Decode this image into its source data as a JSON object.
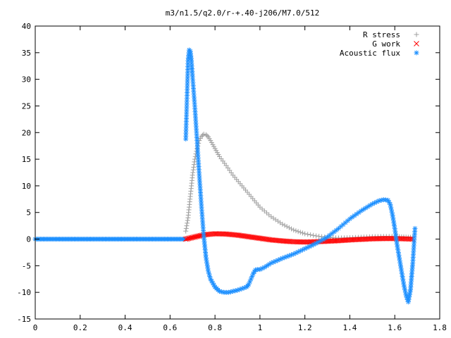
{
  "chart_data": {
    "type": "scatter",
    "title": "m3/n1.5/q2.0/r-+.40-j206/M7.0/512",
    "xlabel": "",
    "ylabel": "",
    "xlim": [
      0,
      1.8
    ],
    "ylim": [
      -15,
      40
    ],
    "x_ticks": [
      "0",
      "0.2",
      "0.4",
      "0.6",
      "0.8",
      "1",
      "1.2",
      "1.4",
      "1.6",
      "1.8"
    ],
    "y_ticks": [
      "-15",
      "-10",
      "-5",
      "0",
      "5",
      "10",
      "15",
      "20",
      "25",
      "30",
      "35",
      "40"
    ],
    "grid": false,
    "legend_position": "top-right",
    "series": [
      {
        "name": "R stress",
        "marker": "plus",
        "color": "#a0a0a0",
        "x": [
          0.67,
          0.68,
          0.69,
          0.7,
          0.71,
          0.72,
          0.73,
          0.74,
          0.75,
          0.76,
          0.77,
          0.78,
          0.8,
          0.82,
          0.85,
          0.88,
          0.92,
          0.96,
          1.0,
          1.05,
          1.1,
          1.15,
          1.2,
          1.25,
          1.3,
          1.35,
          1.4,
          1.45,
          1.5,
          1.55,
          1.6,
          1.62,
          1.64,
          1.66,
          1.68
        ],
        "y": [
          1.5,
          4,
          8,
          12,
          15,
          17,
          18.5,
          19.3,
          19.7,
          19.6,
          19.2,
          18.5,
          17,
          15.5,
          13.8,
          12,
          10,
          8,
          6,
          4.2,
          2.8,
          1.7,
          1.0,
          0.6,
          0.3,
          0.2,
          0.25,
          0.35,
          0.45,
          0.5,
          0.5,
          0.45,
          0.4,
          0.35,
          0.3
        ]
      },
      {
        "name": "G work",
        "marker": "cross",
        "color": "#ff0000",
        "x": [
          0.67,
          0.7,
          0.73,
          0.76,
          0.8,
          0.85,
          0.9,
          0.95,
          1.0,
          1.05,
          1.1,
          1.15,
          1.2,
          1.25,
          1.3,
          1.35,
          1.4,
          1.45,
          1.5,
          1.55,
          1.6,
          1.62,
          1.64,
          1.66,
          1.68
        ],
        "y": [
          0,
          0.3,
          0.6,
          0.85,
          1.0,
          0.95,
          0.75,
          0.45,
          0.15,
          -0.15,
          -0.35,
          -0.5,
          -0.55,
          -0.5,
          -0.4,
          -0.3,
          -0.15,
          -0.05,
          0.05,
          0.1,
          0.1,
          0.08,
          0.05,
          0.02,
          0.0
        ]
      },
      {
        "name": "Acoustic flux",
        "marker": "star",
        "color": "#1e90ff",
        "x": [
          0.67,
          0.68,
          0.685,
          0.69,
          0.695,
          0.7,
          0.71,
          0.72,
          0.73,
          0.74,
          0.75,
          0.76,
          0.77,
          0.78,
          0.8,
          0.82,
          0.84,
          0.86,
          0.88,
          0.9,
          0.92,
          0.94,
          0.95,
          0.96,
          0.97,
          0.98,
          0.99,
          1.0,
          1.02,
          1.05,
          1.1,
          1.15,
          1.2,
          1.25,
          1.3,
          1.35,
          1.4,
          1.45,
          1.5,
          1.53,
          1.55,
          1.57,
          1.58,
          1.59,
          1.6,
          1.61,
          1.62,
          1.63,
          1.64,
          1.65,
          1.66,
          1.67,
          1.68,
          1.69
        ],
        "y": [
          18.8,
          33.5,
          35.5,
          35.3,
          33.5,
          30.5,
          25,
          18.5,
          12,
          6,
          0.5,
          -3.5,
          -6,
          -7.5,
          -9,
          -9.8,
          -10,
          -10,
          -9.8,
          -9.6,
          -9.3,
          -9,
          -8.5,
          -7.5,
          -6.5,
          -5.8,
          -5.7,
          -5.7,
          -5.3,
          -4.5,
          -3.6,
          -2.8,
          -1.8,
          -0.8,
          0.4,
          2.0,
          3.8,
          5.3,
          6.6,
          7.2,
          7.4,
          7.3,
          6.5,
          4.5,
          2,
          -1,
          -3.5,
          -6,
          -8.5,
          -10.5,
          -11.8,
          -9.5,
          -4.5,
          2
        ]
      }
    ]
  }
}
